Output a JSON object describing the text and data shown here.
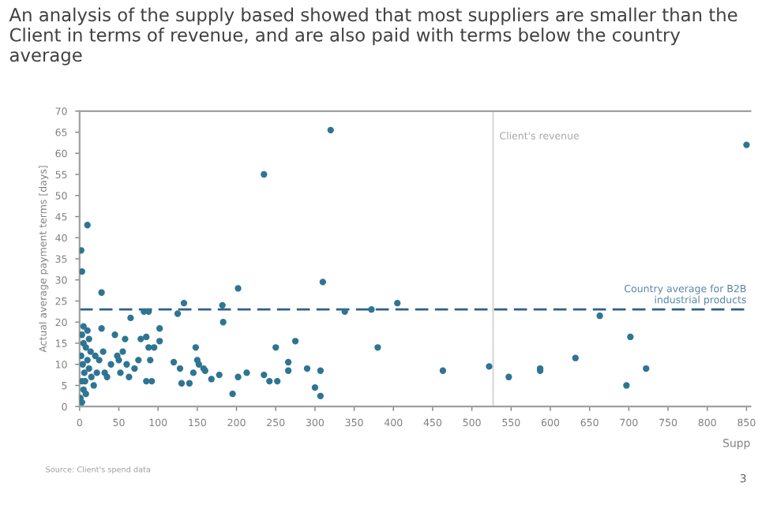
{
  "chart_data": {
    "type": "scatter",
    "title": "An analysis of the supply based showed that most suppliers are smaller than the Client in terms of revenue, and are also paid with terms below the country average",
    "xlabel": "Supp",
    "ylabel": "Actual average payment terms [days]",
    "x": [
      2,
      3,
      10,
      5,
      3,
      5,
      2,
      4,
      6,
      3,
      5,
      8,
      10,
      12,
      7,
      14,
      15,
      20,
      25,
      18,
      10,
      12,
      8,
      1,
      3,
      22,
      28,
      28,
      30,
      32,
      35,
      40,
      45,
      48,
      50,
      52,
      55,
      58,
      60,
      63,
      65,
      70,
      75,
      78,
      82,
      85,
      88,
      88,
      90,
      85,
      92,
      95,
      102,
      102,
      120,
      125,
      128,
      130,
      133,
      140,
      145,
      148,
      150,
      152,
      158,
      160,
      168,
      178,
      182,
      183,
      195,
      202,
      202,
      213,
      235,
      235,
      242,
      250,
      252,
      266,
      266,
      275,
      290,
      300,
      307,
      307,
      310,
      320,
      338,
      372,
      380,
      405,
      463,
      522,
      547,
      587,
      587,
      632,
      663,
      697,
      702,
      722,
      850
    ],
    "series": [
      {
        "color": "#2e7593",
        "values": [
          37,
          32,
          43,
          19,
          17,
          15,
          12,
          10,
          8,
          6,
          4,
          14,
          11,
          9,
          6,
          13,
          7,
          12,
          11,
          5,
          18,
          16,
          3,
          2,
          1,
          8,
          27,
          18.5,
          13,
          8,
          7,
          10,
          17,
          12,
          11,
          8,
          13,
          16,
          10,
          7,
          21,
          9,
          11,
          16,
          22.5,
          16.5,
          22.5,
          14,
          11,
          6,
          6,
          14,
          18.5,
          15.5,
          10.5,
          22,
          9,
          5.5,
          24.5,
          5.5,
          8,
          14,
          11,
          10,
          9,
          8.5,
          6.5,
          7.5,
          24,
          20,
          3,
          28,
          7,
          8,
          55,
          7.5,
          6,
          14,
          6,
          10.5,
          8.5,
          15.5,
          9,
          4.5,
          2.5,
          8.5,
          29.5,
          65.5,
          22.5,
          23,
          14,
          24.5,
          8.5,
          9.5,
          7,
          9,
          8.5,
          11.5,
          21.5,
          5,
          16.5,
          9,
          62
        ]
      }
    ],
    "xlim": [
      0,
      855
    ],
    "ylim": [
      0,
      70
    ],
    "xticks": [
      0,
      50,
      100,
      150,
      200,
      250,
      300,
      350,
      400,
      450,
      500,
      550,
      600,
      650,
      700,
      750,
      800,
      850
    ],
    "yticks": [
      0,
      5,
      10,
      15,
      20,
      25,
      30,
      35,
      40,
      45,
      50,
      55,
      60,
      65,
      70
    ],
    "marker": "circle",
    "grid": false,
    "ref_lines": [
      {
        "axis": "x",
        "value": 527,
        "label": "Client's revenue",
        "color": "#d9d9d9",
        "line_style": "solid"
      },
      {
        "axis": "y",
        "value": 23,
        "label": "Country average for B2B\nindustrial products",
        "color": "#2f5f8a",
        "line_style": "dashed"
      }
    ],
    "annotations": [
      "Source: Client's spend data",
      "3"
    ]
  }
}
